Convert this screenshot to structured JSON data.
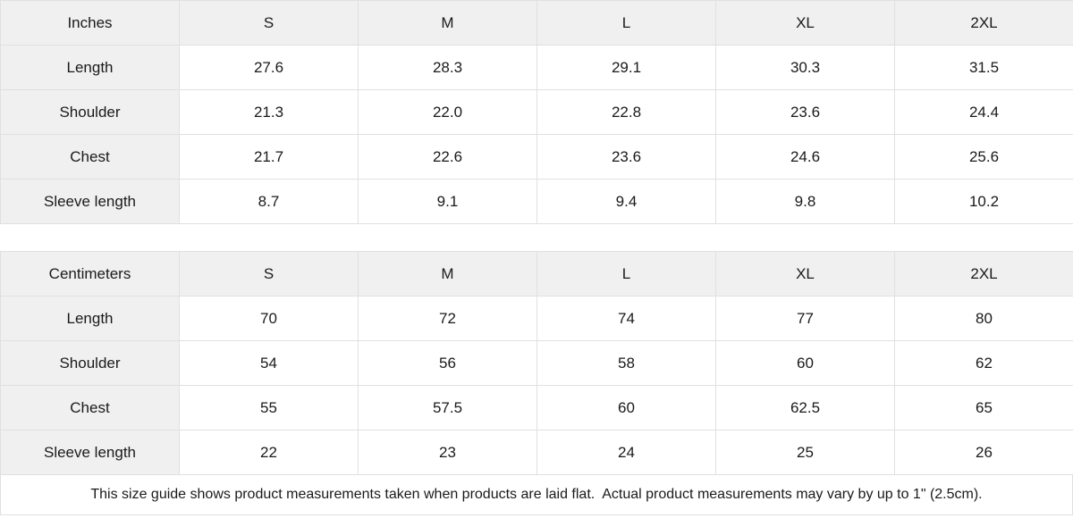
{
  "colors": {
    "header_bg": "#f0f0f0",
    "border": "#e0e0e0",
    "text": "#1a1a1a",
    "background": "#ffffff"
  },
  "tables": [
    {
      "unit_label": "Inches",
      "sizes": [
        "S",
        "M",
        "L",
        "XL",
        "2XL"
      ],
      "rows": [
        {
          "label": "Length",
          "values": [
            "27.6",
            "28.3",
            "29.1",
            "30.3",
            "31.5"
          ]
        },
        {
          "label": "Shoulder",
          "values": [
            "21.3",
            "22.0",
            "22.8",
            "23.6",
            "24.4"
          ]
        },
        {
          "label": "Chest",
          "values": [
            "21.7",
            "22.6",
            "23.6",
            "24.6",
            "25.6"
          ]
        },
        {
          "label": "Sleeve length",
          "values": [
            "8.7",
            "9.1",
            "9.4",
            "9.8",
            "10.2"
          ]
        }
      ]
    },
    {
      "unit_label": "Centimeters",
      "sizes": [
        "S",
        "M",
        "L",
        "XL",
        "2XL"
      ],
      "rows": [
        {
          "label": "Length",
          "values": [
            "70",
            "72",
            "74",
            "77",
            "80"
          ]
        },
        {
          "label": "Shoulder",
          "values": [
            "54",
            "56",
            "58",
            "60",
            "62"
          ]
        },
        {
          "label": "Chest",
          "values": [
            "55",
            "57.5",
            "60",
            "62.5",
            "65"
          ]
        },
        {
          "label": "Sleeve length",
          "values": [
            "22",
            "23",
            "24",
            "25",
            "26"
          ]
        }
      ]
    }
  ],
  "footer": {
    "note": "This size guide shows product measurements taken when products are laid flat.  Actual product measurements may vary by up to 1\" (2.5cm)."
  }
}
